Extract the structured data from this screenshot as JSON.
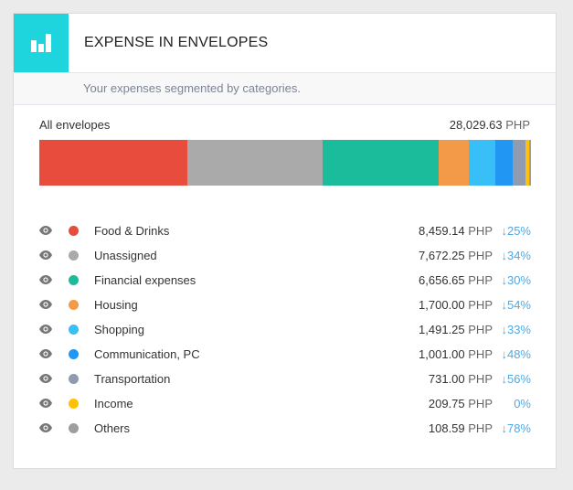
{
  "header": {
    "title": "EXPENSE IN ENVELOPES",
    "subtitle": "Your expenses segmented by categories.",
    "icon": "bar-chart-icon",
    "accent": "#1fd5dd"
  },
  "summary": {
    "label": "All envelopes",
    "total": "28,029.63",
    "currency": "PHP"
  },
  "categories": [
    {
      "name": "Food & Drinks",
      "amount": "8,459.14",
      "value": 8459.14,
      "currency": "PHP",
      "change": "↓25%",
      "color": "#e74c3c"
    },
    {
      "name": "Unassigned",
      "amount": "7,672.25",
      "value": 7672.25,
      "currency": "PHP",
      "change": "↓34%",
      "color": "#aaaaaa"
    },
    {
      "name": "Financial expenses",
      "amount": "6,656.65",
      "value": 6656.65,
      "currency": "PHP",
      "change": "↓30%",
      "color": "#1abc9c"
    },
    {
      "name": "Housing",
      "amount": "1,700.00",
      "value": 1700.0,
      "currency": "PHP",
      "change": "↓54%",
      "color": "#f39a48"
    },
    {
      "name": "Shopping",
      "amount": "1,491.25",
      "value": 1491.25,
      "currency": "PHP",
      "change": "↓33%",
      "color": "#38bff8"
    },
    {
      "name": "Communication, PC",
      "amount": "1,001.00",
      "value": 1001.0,
      "currency": "PHP",
      "change": "↓48%",
      "color": "#2196f3"
    },
    {
      "name": "Transportation",
      "amount": "731.00",
      "value": 731.0,
      "currency": "PHP",
      "change": "↓56%",
      "color": "#8e9bb0"
    },
    {
      "name": "Income",
      "amount": "209.75",
      "value": 209.75,
      "currency": "PHP",
      "change": "0%",
      "color": "#ffc107"
    },
    {
      "name": "Others",
      "amount": "108.59",
      "value": 108.59,
      "currency": "PHP",
      "change": "↓78%",
      "color": "#9e9e9e"
    }
  ]
}
